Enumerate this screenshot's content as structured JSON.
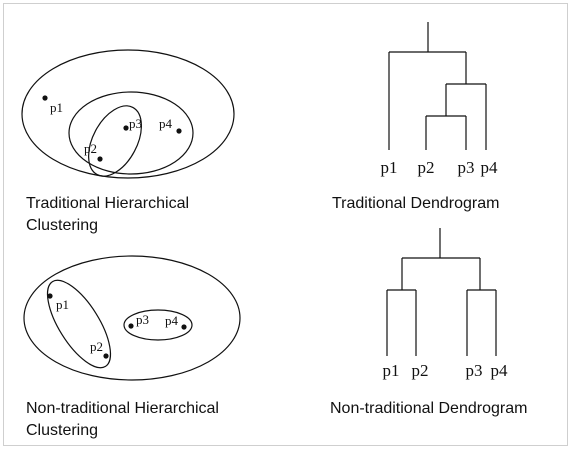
{
  "points": {
    "p1": "p1",
    "p2": "p2",
    "p3": "p3",
    "p4": "p4"
  },
  "captions": {
    "traditional_clustering": [
      "Traditional Hierarchical",
      "Clustering"
    ],
    "traditional_dendrogram": "Traditional Dendrogram",
    "nontraditional_clustering": [
      "Non-traditional Hierarchical",
      "Clustering"
    ],
    "nontraditional_dendrogram": "Non-traditional Dendrogram"
  },
  "colors": {
    "stroke": "#111111",
    "border": "#cfcfcf"
  }
}
